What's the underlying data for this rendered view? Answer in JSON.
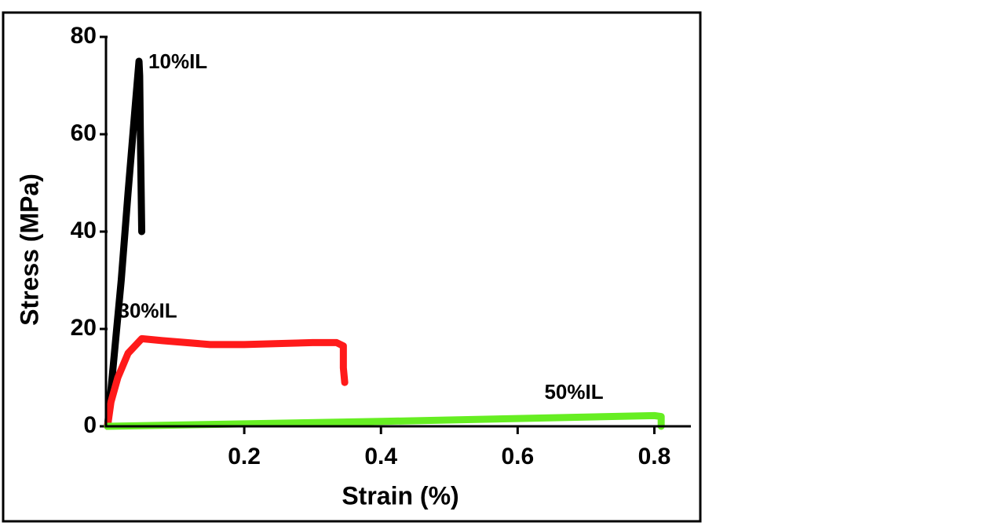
{
  "chart_data": {
    "type": "line",
    "x_label": "Strain (%)",
    "y_label": "Stress (MPa)",
    "xlim": [
      0,
      0.85
    ],
    "ylim": [
      0,
      80
    ],
    "xticks": [
      0.2,
      0.4,
      0.6,
      0.8
    ],
    "yticks": [
      0,
      20,
      40,
      60,
      80
    ],
    "grid": false,
    "series": [
      {
        "name": "10%IL",
        "color": "#000000",
        "x": [
          0,
          0.01,
          0.02,
          0.03,
          0.04,
          0.046,
          0.047,
          0.048,
          0.049,
          0.05
        ],
        "values": [
          0,
          15,
          30,
          48,
          65,
          75,
          72,
          60,
          50,
          40
        ]
      },
      {
        "name": "30%IL",
        "color": "#ff1a1a",
        "x": [
          0,
          0.005,
          0.015,
          0.03,
          0.05,
          0.08,
          0.15,
          0.2,
          0.25,
          0.3,
          0.335,
          0.345,
          0.345,
          0.347
        ],
        "values": [
          0,
          5,
          10,
          15,
          18,
          17.6,
          16.8,
          16.8,
          17,
          17.2,
          17.2,
          16.5,
          12,
          9
        ]
      },
      {
        "name": "50%IL",
        "color": "#66ee22",
        "x": [
          0,
          0.2,
          0.4,
          0.6,
          0.8,
          0.81,
          0.81
        ],
        "values": [
          0,
          0.5,
          1,
          1.6,
          2.2,
          2,
          0
        ]
      }
    ]
  }
}
